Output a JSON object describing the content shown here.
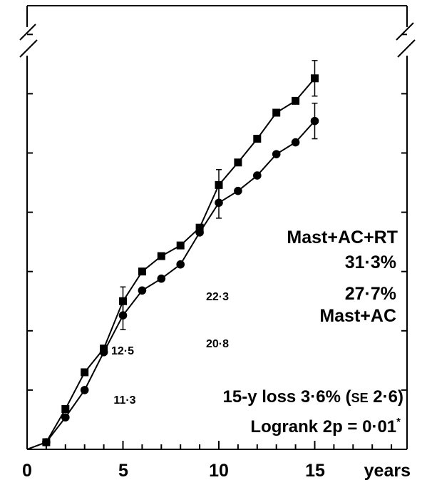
{
  "chart_data": {
    "type": "line",
    "x_ticks": [
      "0",
      "5",
      "10",
      "15"
    ],
    "x_unit_label": "years",
    "xlim": [
      0,
      15
    ],
    "ylim": [
      0,
      36
    ],
    "grid": false,
    "series": [
      {
        "name": "Mast+AC+RT",
        "marker": "square",
        "x": [
          1,
          2,
          3,
          4,
          5,
          6,
          7,
          8,
          9,
          10,
          11,
          12,
          13,
          14,
          15
        ],
        "y": [
          0.6,
          3.4,
          6.5,
          8.5,
          12.5,
          15.0,
          16.3,
          17.2,
          18.7,
          22.3,
          24.2,
          26.2,
          28.4,
          29.4,
          31.3
        ]
      },
      {
        "name": "Mast+AC",
        "marker": "circle",
        "x": [
          1,
          2,
          3,
          4,
          5,
          6,
          7,
          8,
          9,
          10,
          11,
          12,
          13,
          14,
          15
        ],
        "y": [
          0.6,
          2.7,
          5.0,
          8.2,
          11.3,
          13.4,
          14.4,
          15.6,
          18.3,
          20.8,
          21.8,
          23.1,
          24.9,
          25.9,
          27.7
        ]
      }
    ],
    "error_bars": [
      {
        "series": "Mast+AC+RT",
        "x": 5,
        "y": 12.5,
        "err": 1.2
      },
      {
        "series": "Mast+AC",
        "x": 5,
        "y": 11.3,
        "err": 1.2
      },
      {
        "series": "Mast+AC+RT",
        "x": 10,
        "y": 22.3,
        "err": 1.3
      },
      {
        "series": "Mast+AC",
        "x": 10,
        "y": 20.8,
        "err": 1.3
      },
      {
        "series": "Mast+AC+RT",
        "x": 15,
        "y": 31.3,
        "err": 1.5
      },
      {
        "series": "Mast+AC",
        "x": 15,
        "y": 27.7,
        "err": 1.5
      }
    ],
    "value_labels": [
      {
        "text": "12·5",
        "x": 5,
        "series": "Mast+AC+RT"
      },
      {
        "text": "11·3",
        "x": 5,
        "series": "Mast+AC"
      },
      {
        "text": "22·3",
        "x": 10,
        "series": "Mast+AC+RT"
      },
      {
        "text": "20·8",
        "x": 10,
        "series": "Mast+AC"
      }
    ],
    "end_labels": {
      "rt_name": "Mast+AC+RT",
      "rt_pct": "31·3%",
      "ac_pct": "27·7%",
      "ac_name": "Mast+AC"
    },
    "annotations": {
      "loss_text": "15-y loss 3·6% (",
      "loss_se": "SE",
      "loss_se_value": " 2·6)",
      "logrank_text": "Logrank 2p = 0·01",
      "logrank_mark": "*"
    },
    "axis_break": true,
    "colors": {
      "line": "#000000",
      "background": "#ffffff"
    }
  }
}
